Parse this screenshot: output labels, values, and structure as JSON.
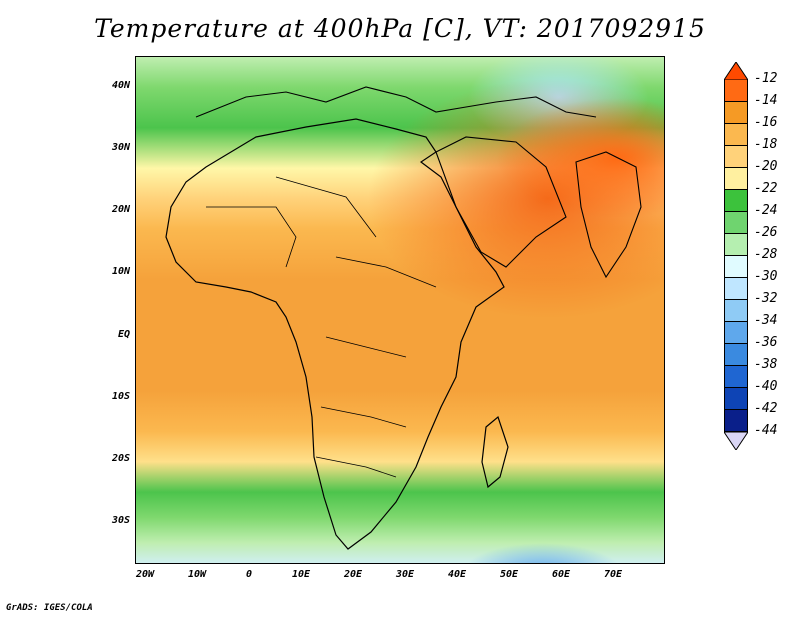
{
  "title": "Temperature at 400hPa [C], VT: 2017092915",
  "footer": "GrADS: IGES/COLA",
  "y_axis_labels": [
    "40N",
    "30N",
    "20N",
    "10N",
    "EQ",
    "10S",
    "20S",
    "30S"
  ],
  "x_axis_labels": [
    "20W",
    "10W",
    "0",
    "10E",
    "20E",
    "30E",
    "40E",
    "50E",
    "60E",
    "70E"
  ],
  "colorbar": {
    "labels": [
      "-12",
      "-14",
      "-16",
      "-18",
      "-20",
      "-22",
      "-24",
      "-26",
      "-28",
      "-30",
      "-32",
      "-34",
      "-36",
      "-38",
      "-40",
      "-42",
      "-44"
    ],
    "colors": [
      "#ff4a00",
      "#ff6a14",
      "#f59a25",
      "#fbb84f",
      "#ffd27a",
      "#fff0a0",
      "#3cc23c",
      "#6fd46f",
      "#b5efb0",
      "#e0fbff",
      "#bfe6ff",
      "#8fcbf5",
      "#5fa8ec",
      "#3a8ae0",
      "#1f66d2",
      "#0e44b5",
      "#0a1f8a",
      "#dad6f5"
    ]
  },
  "map_region": {
    "lon_range": [
      -22,
      80
    ],
    "lat_range": [
      -37,
      45
    ]
  }
}
